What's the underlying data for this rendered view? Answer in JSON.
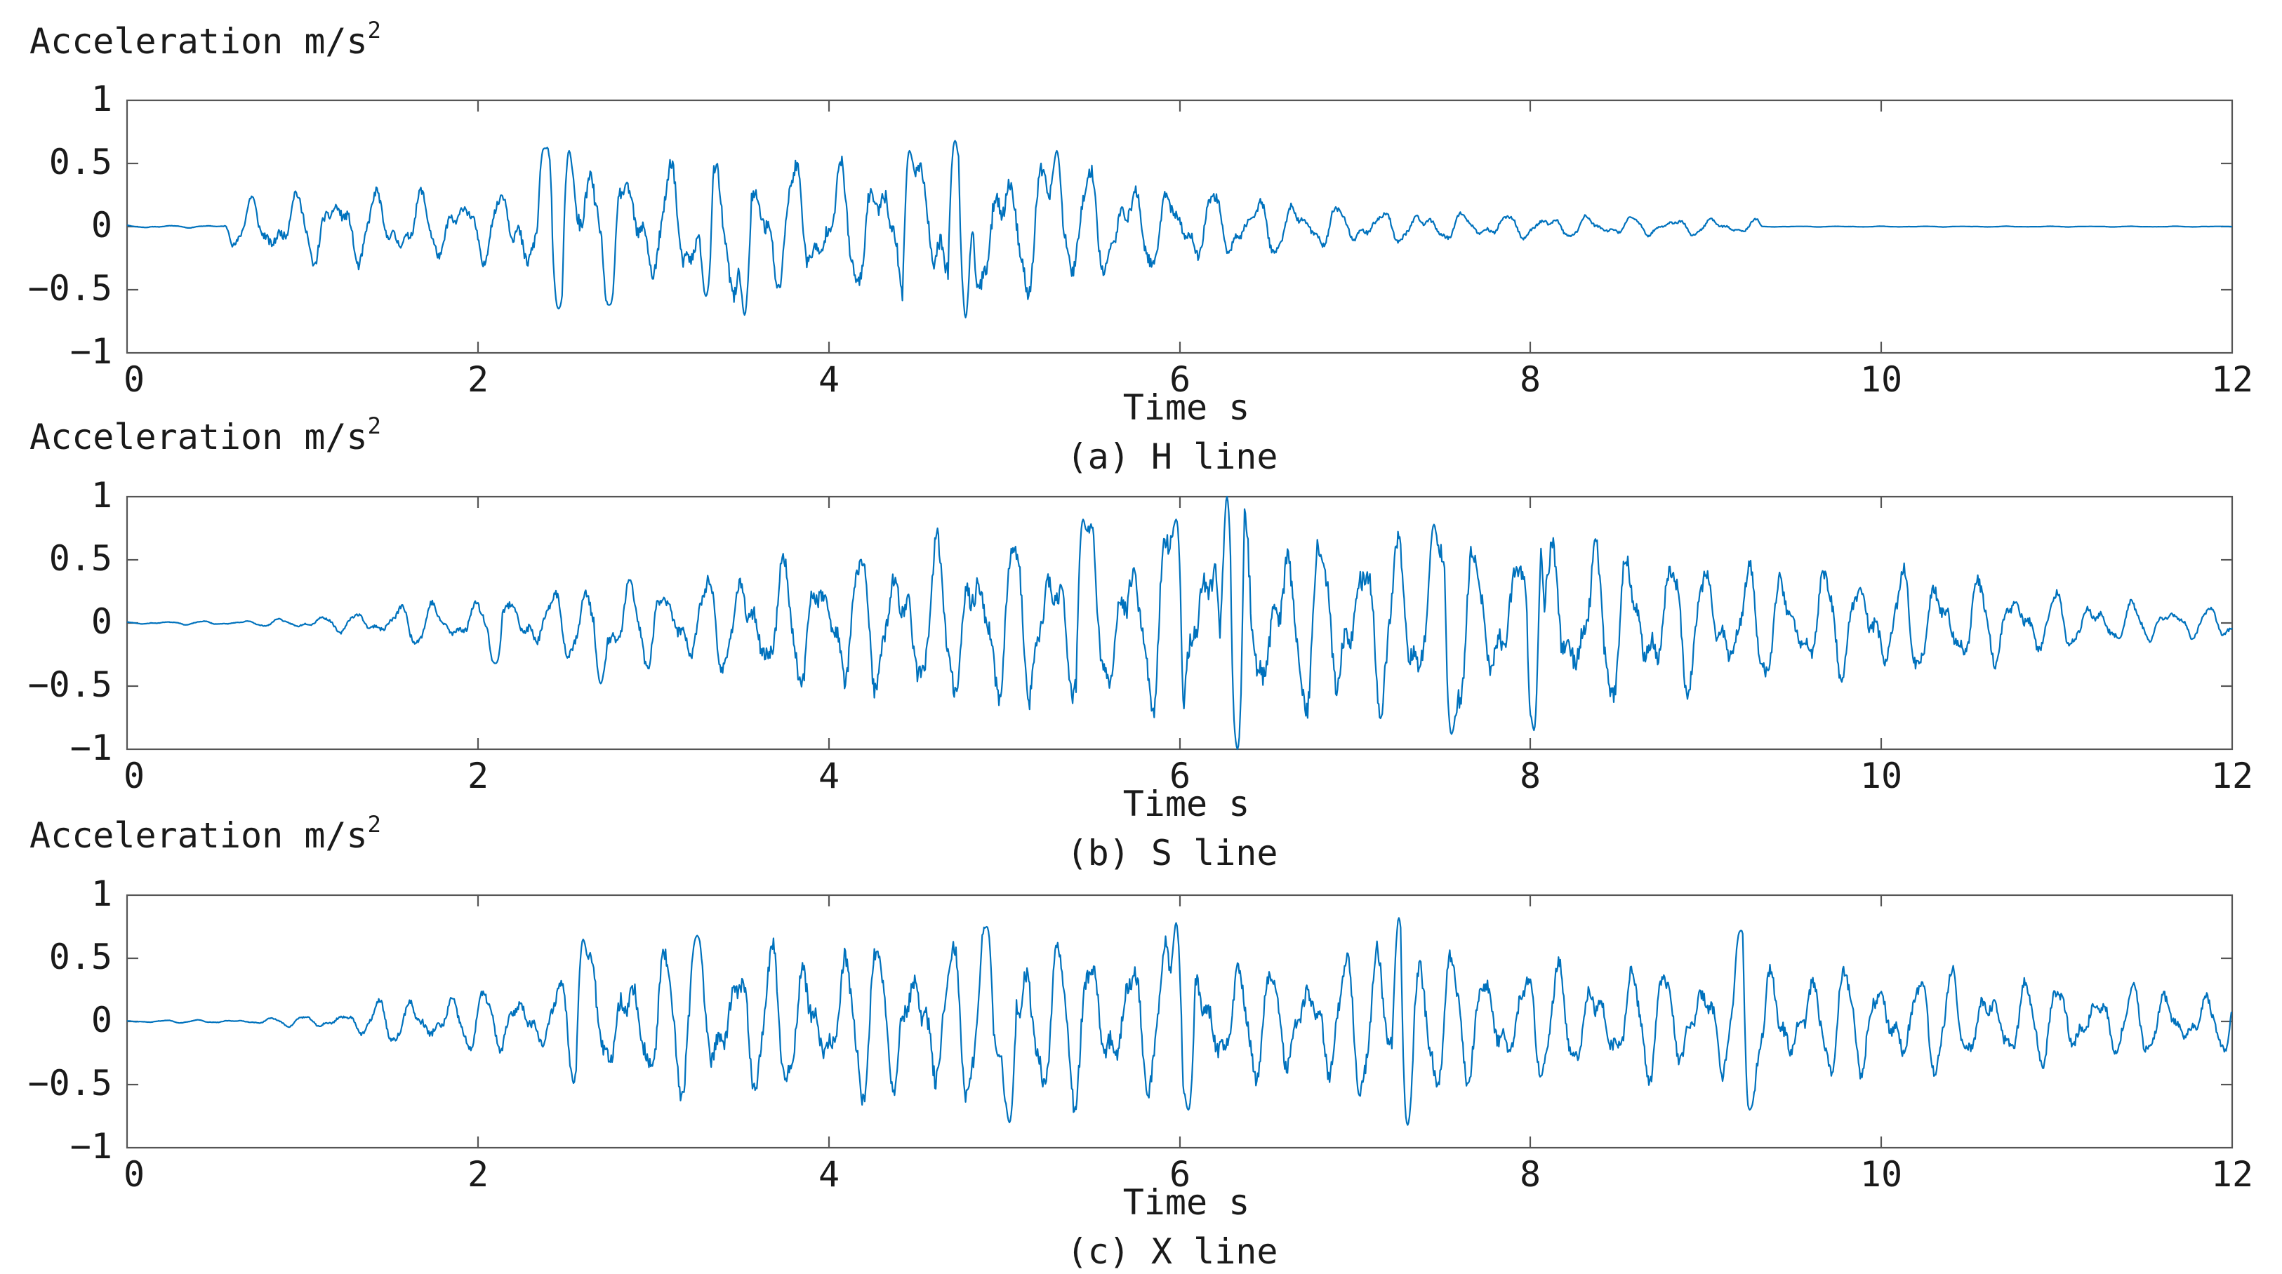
{
  "figure": {
    "line_color": "#0072bd"
  },
  "chart_data": [
    {
      "type": "line",
      "ylabel": "Acceleration m/s",
      "ylabel_sup": "2",
      "xlabel": "Time s",
      "caption": "(a) H line",
      "xlim": [
        0,
        12
      ],
      "ylim": [
        -1,
        1
      ],
      "xticks": [
        "0",
        "2",
        "4",
        "6",
        "8",
        "10",
        "12"
      ],
      "yticks": [
        "1",
        "0.5",
        "0",
        "−0.5",
        "−1"
      ],
      "grid": false,
      "series": [
        {
          "envelope": [
            [
              0,
              0.01
            ],
            [
              0.55,
              0.01
            ],
            [
              0.6,
              0.18
            ],
            [
              0.8,
              0.28
            ],
            [
              1.2,
              0.34
            ],
            [
              1.5,
              0.3
            ],
            [
              1.8,
              0.28
            ],
            [
              2.1,
              0.3
            ],
            [
              2.3,
              0.48
            ],
            [
              2.4,
              0.6
            ],
            [
              2.7,
              0.55
            ],
            [
              3.0,
              0.5
            ],
            [
              3.3,
              0.55
            ],
            [
              3.5,
              0.6
            ],
            [
              3.8,
              0.55
            ],
            [
              4.1,
              0.55
            ],
            [
              4.5,
              0.6
            ],
            [
              4.7,
              0.7
            ],
            [
              5.0,
              0.6
            ],
            [
              5.3,
              0.58
            ],
            [
              5.6,
              0.45
            ],
            [
              5.9,
              0.35
            ],
            [
              6.2,
              0.3
            ],
            [
              6.5,
              0.25
            ],
            [
              7.0,
              0.15
            ],
            [
              7.5,
              0.12
            ],
            [
              8.0,
              0.1
            ],
            [
              8.8,
              0.08
            ],
            [
              9.3,
              0.06
            ],
            [
              9.32,
              0.003
            ],
            [
              12,
              0.003
            ]
          ],
          "peak_events": [
            [
              2.38,
              0.62
            ],
            [
              2.46,
              -0.65
            ],
            [
              2.52,
              0.6
            ],
            [
              3.52,
              -0.7
            ],
            [
              4.46,
              0.6
            ],
            [
              4.72,
              0.68
            ],
            [
              4.78,
              -0.72
            ],
            [
              5.3,
              0.6
            ],
            [
              2.75,
              -0.62
            ],
            [
              3.3,
              -0.55
            ]
          ]
        }
      ]
    },
    {
      "type": "line",
      "ylabel": "Acceleration m/s",
      "ylabel_sup": "2",
      "xlabel": "Time s",
      "caption": "(b) S line",
      "xlim": [
        0,
        12
      ],
      "ylim": [
        -1,
        1
      ],
      "xticks": [
        "0",
        "2",
        "4",
        "6",
        "8",
        "10",
        "12"
      ],
      "yticks": [
        "1",
        "0.5",
        "0",
        "−0.5",
        "−1"
      ],
      "grid": false,
      "series": [
        {
          "envelope": [
            [
              0,
              0.01
            ],
            [
              0.7,
              0.02
            ],
            [
              1.0,
              0.05
            ],
            [
              1.4,
              0.1
            ],
            [
              1.6,
              0.18
            ],
            [
              2.0,
              0.2
            ],
            [
              2.2,
              0.25
            ],
            [
              2.6,
              0.3
            ],
            [
              2.8,
              0.35
            ],
            [
              3.3,
              0.4
            ],
            [
              3.8,
              0.55
            ],
            [
              4.2,
              0.6
            ],
            [
              4.8,
              0.7
            ],
            [
              5.3,
              0.75
            ],
            [
              5.8,
              0.78
            ],
            [
              6.3,
              0.85
            ],
            [
              6.8,
              0.75
            ],
            [
              7.3,
              0.72
            ],
            [
              7.6,
              0.7
            ],
            [
              8.1,
              0.75
            ],
            [
              8.6,
              0.65
            ],
            [
              9.2,
              0.5
            ],
            [
              9.8,
              0.45
            ],
            [
              10.3,
              0.45
            ],
            [
              10.8,
              0.3
            ],
            [
              11.3,
              0.18
            ],
            [
              12,
              0.12
            ]
          ],
          "peak_events": [
            [
              6.27,
              1.0
            ],
            [
              6.33,
              -1.0
            ],
            [
              8.04,
              0.92
            ],
            [
              7.55,
              -0.88
            ],
            [
              8.02,
              -0.85
            ],
            [
              2.7,
              -0.48
            ],
            [
              2.1,
              -0.32
            ],
            [
              5.98,
              0.82
            ],
            [
              5.45,
              0.82
            ],
            [
              7.45,
              0.78
            ]
          ]
        }
      ]
    },
    {
      "type": "line",
      "ylabel": "Acceleration m/s",
      "ylabel_sup": "2",
      "xlabel": "Time s",
      "caption": "(c) X line",
      "xlim": [
        0,
        12
      ],
      "ylim": [
        -1,
        1
      ],
      "xticks": [
        "0",
        "2",
        "4",
        "6",
        "8",
        "10",
        "12"
      ],
      "yticks": [
        "1",
        "0.5",
        "0",
        "−0.5",
        "−1"
      ],
      "grid": false,
      "series": [
        {
          "envelope": [
            [
              0,
              0.01
            ],
            [
              0.7,
              0.015
            ],
            [
              1.0,
              0.05
            ],
            [
              1.3,
              0.1
            ],
            [
              1.5,
              0.2
            ],
            [
              2.0,
              0.25
            ],
            [
              2.4,
              0.3
            ],
            [
              2.6,
              0.55
            ],
            [
              3.2,
              0.6
            ],
            [
              3.8,
              0.62
            ],
            [
              4.3,
              0.65
            ],
            [
              5.0,
              0.7
            ],
            [
              5.6,
              0.68
            ],
            [
              6.0,
              0.62
            ],
            [
              6.5,
              0.45
            ],
            [
              7.0,
              0.6
            ],
            [
              7.3,
              0.72
            ],
            [
              7.6,
              0.55
            ],
            [
              8.0,
              0.5
            ],
            [
              8.5,
              0.45
            ],
            [
              9.0,
              0.5
            ],
            [
              9.2,
              0.55
            ],
            [
              9.6,
              0.45
            ],
            [
              10.2,
              0.45
            ],
            [
              10.8,
              0.35
            ],
            [
              11.4,
              0.3
            ],
            [
              12,
              0.25
            ]
          ],
          "peak_events": [
            [
              7.25,
              0.82
            ],
            [
              7.3,
              -0.82
            ],
            [
              5.03,
              -0.8
            ],
            [
              5.98,
              0.78
            ],
            [
              6.05,
              -0.7
            ],
            [
              3.25,
              0.68
            ],
            [
              9.2,
              0.72
            ],
            [
              9.25,
              -0.7
            ],
            [
              2.6,
              0.65
            ],
            [
              4.9,
              0.75
            ]
          ]
        }
      ]
    }
  ]
}
